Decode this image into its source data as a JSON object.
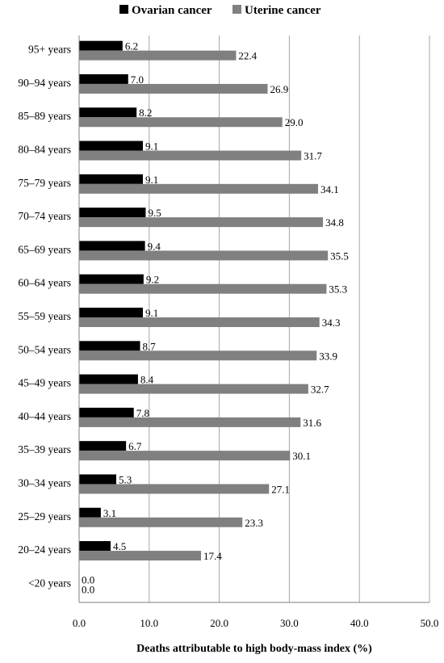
{
  "chart_data": {
    "type": "bar",
    "orientation": "horizontal",
    "title": "",
    "xlabel": "Deaths attributable to high body-mass index (%)",
    "ylabel": "",
    "xlim": [
      0,
      50
    ],
    "x_ticks": [
      "0.0",
      "10.0",
      "20.0",
      "30.0",
      "40.0",
      "50.0"
    ],
    "grid": "vertical",
    "legend_position": "top",
    "categories": [
      "95+ years",
      "90–94 years",
      "85–89 years",
      "80–84 years",
      "75–79 years",
      "70–74 years",
      "65–69 years",
      "60–64 years",
      "55–59 years",
      "50–54 years",
      "45–49 years",
      "40–44 years",
      "35–39 years",
      "30–34 years",
      "25–29 years",
      "20–24 years",
      "<20 years"
    ],
    "series": [
      {
        "name": "Ovarian cancer",
        "color": "#000000",
        "values": [
          6.2,
          7.0,
          8.2,
          9.1,
          9.1,
          9.5,
          9.4,
          9.2,
          9.1,
          8.7,
          8.4,
          7.8,
          6.7,
          5.3,
          3.1,
          4.5,
          0.0
        ],
        "labels": [
          "6.2",
          "7.0",
          "8.2",
          "9.1",
          "9.1",
          "9.5",
          "9.4",
          "9.2",
          "9.1",
          "8.7",
          "8.4",
          "7.8",
          "6.7",
          "5.3",
          "3.1",
          "4.5",
          "0.0"
        ]
      },
      {
        "name": "Uterine cancer",
        "color": "#808080",
        "values": [
          22.4,
          26.9,
          29.0,
          31.7,
          34.1,
          34.8,
          35.5,
          35.3,
          34.3,
          33.9,
          32.7,
          31.6,
          30.1,
          27.1,
          23.3,
          17.4,
          0.0
        ],
        "labels": [
          "22.4",
          "26.9",
          "29.0",
          "31.7",
          "34.1",
          "34.8",
          "35.5",
          "35.3",
          "34.3",
          "33.9",
          "32.7",
          "31.6",
          "30.1",
          "27.1",
          "23.3",
          "17.4",
          "0.0"
        ]
      }
    ]
  }
}
